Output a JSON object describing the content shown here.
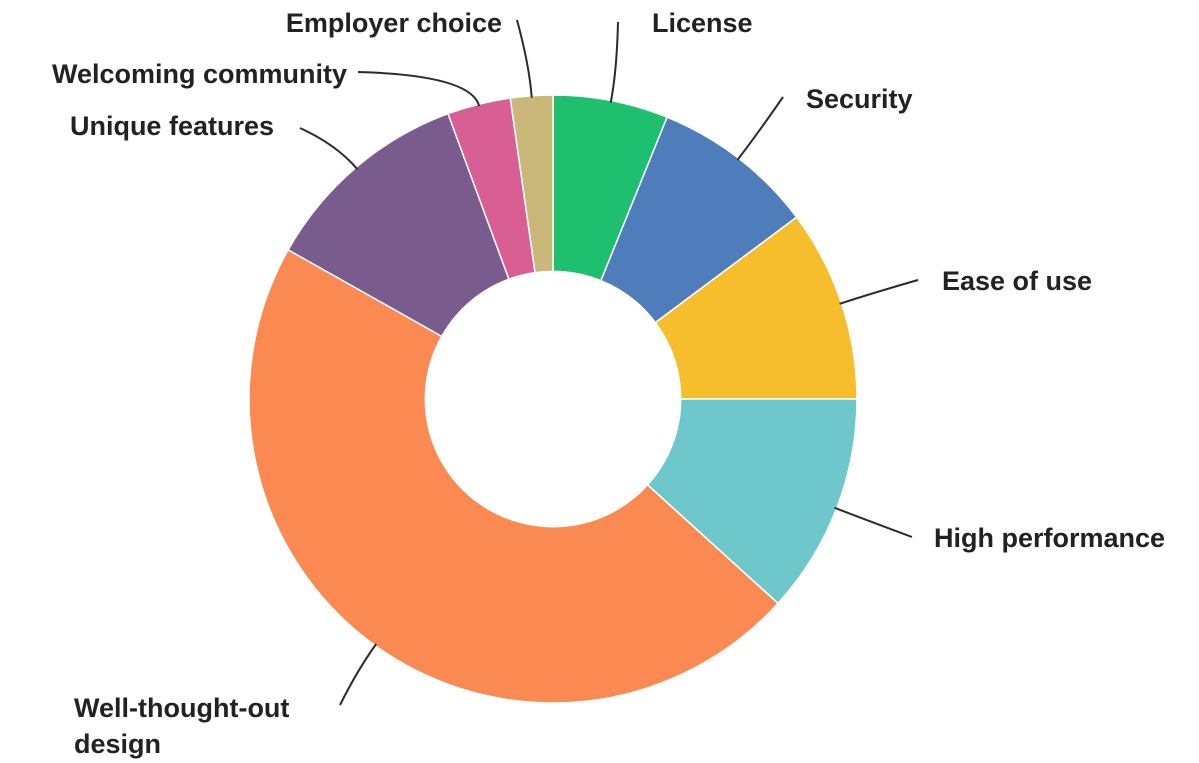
{
  "chart_data": {
    "type": "pie",
    "variant": "donut",
    "start_angle_deg": -90,
    "direction": "clockwise",
    "inner_radius_ratio": 0.42,
    "slices": [
      {
        "label": "License",
        "value": 6.0,
        "color": "#1FBF70"
      },
      {
        "label": "Security",
        "value": 8.5,
        "color": "#4F7DBB"
      },
      {
        "label": "Ease of use",
        "value": 10.0,
        "color": "#F6BE2C"
      },
      {
        "label": "High performance",
        "value": 11.5,
        "color": "#6DC7CB"
      },
      {
        "label": "Well-thought-out design",
        "value": 45.5,
        "color": "#FB8A52"
      },
      {
        "label": "Unique features",
        "value": 11.0,
        "color": "#7A5B8E"
      },
      {
        "label": "Welcoming community",
        "value": 3.3,
        "color": "#D85E93"
      },
      {
        "label": "Employer choice",
        "value": 2.2,
        "color": "#C9B87A"
      }
    ],
    "label_lines": {
      "Well-thought-out design": [
        "Well-thought-out",
        "design"
      ]
    },
    "legend": "none"
  }
}
